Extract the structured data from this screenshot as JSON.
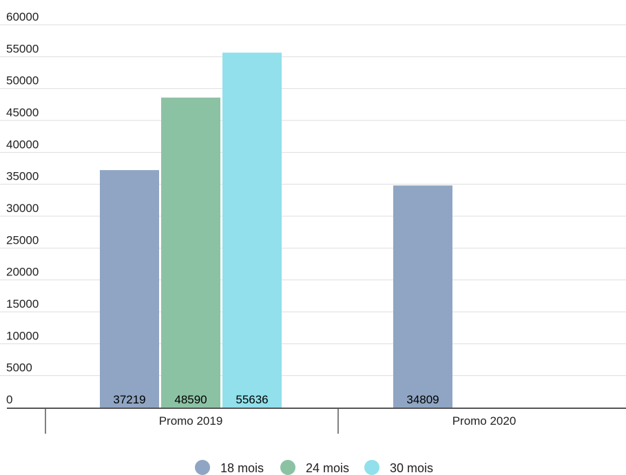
{
  "chart_data": {
    "type": "bar",
    "categories": [
      "Promo 2019",
      "Promo 2020"
    ],
    "series": [
      {
        "name": "18 mois",
        "values": [
          37219,
          34809
        ],
        "color": "#8fa5c3"
      },
      {
        "name": "24 mois",
        "values": [
          48590,
          null
        ],
        "color": "#8cc2a4"
      },
      {
        "name": "30 mois",
        "values": [
          55636,
          null
        ],
        "color": "#91e0eb"
      }
    ],
    "data_labels": [
      [
        "37219",
        "34809"
      ],
      [
        "48590",
        ""
      ],
      [
        "55636",
        ""
      ]
    ],
    "ylim": [
      0,
      60000
    ],
    "yticks": [
      0,
      5000,
      10000,
      15000,
      20000,
      25000,
      30000,
      35000,
      40000,
      45000,
      50000,
      55000,
      60000
    ],
    "ytick_labels": [
      "0",
      "5000",
      "10000",
      "15000",
      "20000",
      "25000",
      "30000",
      "35000",
      "40000",
      "45000",
      "50000",
      "55000",
      "60000"
    ],
    "grid": true,
    "legend_position": "bottom-center",
    "colors": {
      "gridline": "#dddddd",
      "axis": "#555555"
    }
  }
}
